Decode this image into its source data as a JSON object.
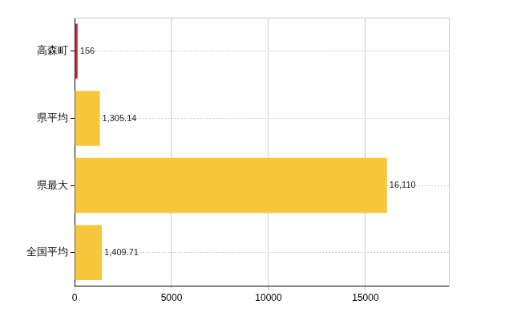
{
  "chart_data": {
    "type": "bar",
    "orientation": "horizontal",
    "categories": [
      "高森町",
      "県平均",
      "県最大",
      "全国平均"
    ],
    "values": [
      156,
      1305.14,
      16110,
      1409.71
    ],
    "value_labels": [
      "156",
      "1,305.14",
      "16,110",
      "1,409.71"
    ],
    "colors": [
      "#c0272d",
      "#f7c73b",
      "#f7c73b",
      "#f7c73b"
    ],
    "xlim": [
      0,
      19300
    ],
    "xticks": [
      0,
      5000,
      10000,
      15000
    ],
    "grid": true,
    "data_labels": true
  }
}
